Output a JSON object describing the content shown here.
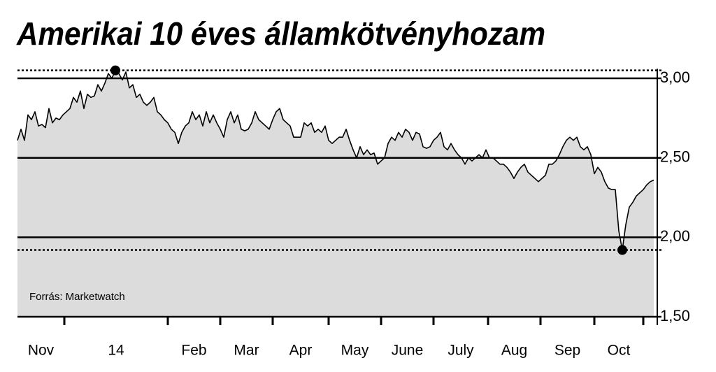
{
  "chart_data": {
    "type": "area",
    "title": "Amerikai 10 éves államkötvényhozam",
    "source": "Forrás: Marketwatch",
    "x_labels": [
      "Nov",
      "14",
      "Feb",
      "Mar",
      "Apr",
      "May",
      "June",
      "July",
      "Aug",
      "Sep",
      "Oct"
    ],
    "xticks": [
      13.4,
      43,
      58,
      73,
      89,
      104,
      119,
      134.6,
      149.6,
      165,
      179
    ],
    "xlim": [
      0,
      182
    ],
    "values": [
      2.61,
      2.68,
      2.61,
      2.77,
      2.74,
      2.79,
      2.7,
      2.71,
      2.69,
      2.81,
      2.72,
      2.75,
      2.74,
      2.77,
      2.79,
      2.81,
      2.88,
      2.85,
      2.92,
      2.81,
      2.9,
      2.88,
      2.89,
      2.96,
      2.92,
      2.97,
      3.03,
      3.0,
      3.05,
      3.03,
      2.99,
      3.04,
      2.94,
      2.96,
      2.88,
      2.9,
      2.85,
      2.83,
      2.85,
      2.88,
      2.79,
      2.77,
      2.74,
      2.72,
      2.68,
      2.66,
      2.59,
      2.66,
      2.7,
      2.72,
      2.79,
      2.74,
      2.77,
      2.7,
      2.79,
      2.72,
      2.77,
      2.72,
      2.68,
      2.63,
      2.74,
      2.79,
      2.72,
      2.77,
      2.68,
      2.67,
      2.68,
      2.72,
      2.79,
      2.74,
      2.72,
      2.7,
      2.68,
      2.74,
      2.79,
      2.81,
      2.74,
      2.72,
      2.7,
      2.63,
      2.63,
      2.63,
      2.72,
      2.7,
      2.72,
      2.66,
      2.68,
      2.66,
      2.7,
      2.61,
      2.59,
      2.61,
      2.63,
      2.63,
      2.68,
      2.61,
      2.55,
      2.5,
      2.57,
      2.52,
      2.55,
      2.52,
      2.53,
      2.46,
      2.48,
      2.5,
      2.59,
      2.63,
      2.61,
      2.66,
      2.63,
      2.68,
      2.66,
      2.61,
      2.66,
      2.65,
      2.57,
      2.56,
      2.57,
      2.61,
      2.63,
      2.66,
      2.57,
      2.55,
      2.59,
      2.55,
      2.52,
      2.5,
      2.46,
      2.5,
      2.48,
      2.5,
      2.52,
      2.5,
      2.55,
      2.5,
      2.5,
      2.48,
      2.46,
      2.46,
      2.44,
      2.41,
      2.37,
      2.41,
      2.44,
      2.46,
      2.41,
      2.39,
      2.37,
      2.35,
      2.37,
      2.39,
      2.46,
      2.46,
      2.48,
      2.52,
      2.57,
      2.61,
      2.63,
      2.61,
      2.63,
      2.57,
      2.55,
      2.57,
      2.52,
      2.4,
      2.44,
      2.41,
      2.35,
      2.31,
      2.3,
      2.3,
      2.04,
      1.92,
      2.08,
      2.19,
      2.22,
      2.26,
      2.28,
      2.3,
      2.33,
      2.35,
      2.36
    ],
    "color": "#000000",
    "fill": "#dcdcdc",
    "ylim": [
      1.5,
      3.06
    ],
    "yticks": [
      {
        "value": 1.5,
        "label": "1,50"
      },
      {
        "value": 2,
        "label": "2,00"
      },
      {
        "value": 2.5,
        "label": "2,50"
      },
      {
        "value": 3,
        "label": "3,00"
      }
    ],
    "grid": true
  }
}
